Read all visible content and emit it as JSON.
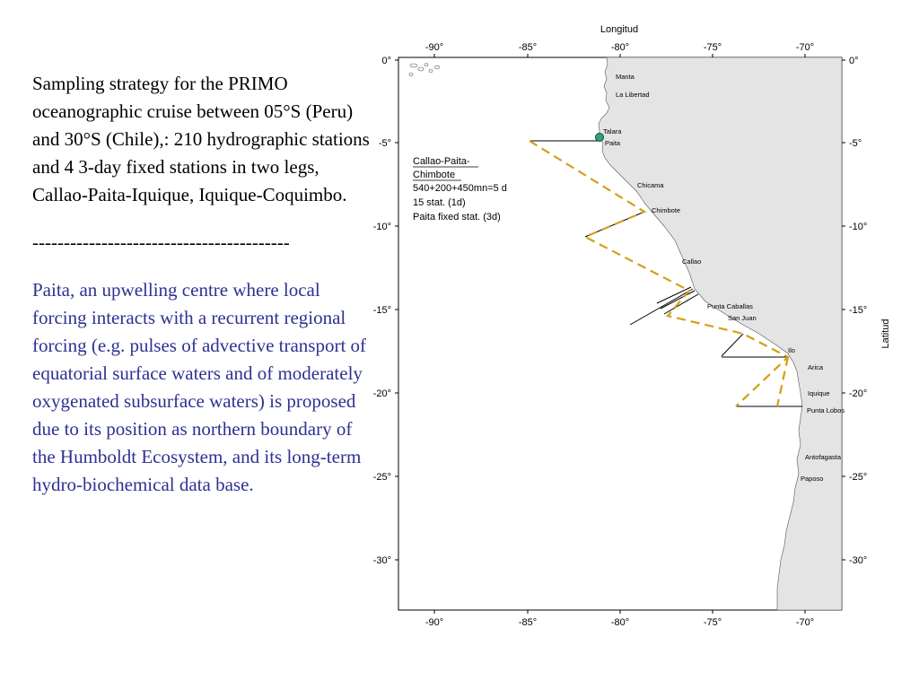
{
  "text": {
    "paragraph1": "Sampling strategy for the PRIMO oceanographic cruise between 05°S (Peru) and 30°S (Chile),: 210 hydrographic stations and 4 3-day fixed stations in two legs, Callao-Paita-Iquique, Iquique-Coquimbo.",
    "separator": "-----------------------------------------",
    "paragraph2": "Paita, an upwelling centre where local forcing interacts with a recurrent regional forcing (e.g. pulses of advective transport of equatorial surface waters and of moderately oxygenated subsurface waters) is proposed due to its position as northern boundary of the Humboldt Ecosystem, and its long-term hydro-biochemical data base."
  },
  "map": {
    "x_axis_title": "Longitud",
    "y_axis_title": "Latitud",
    "lon_ticks": [
      "-90°",
      "-85°",
      "-80°",
      "-75°",
      "-70°"
    ],
    "lat_ticks": [
      "0°",
      "-5°",
      "-10°",
      "-15°",
      "-20°",
      "-25°",
      "-30°"
    ],
    "places": [
      "Manta",
      "La Libertad",
      "Talara",
      "Paita",
      "Chicama",
      "Chimbote",
      "Callao",
      "Punta Caballas",
      "San Juan",
      "Ilo",
      "Arica",
      "Iquique",
      "Punta Lobos",
      "Antofagasta",
      "Paposo"
    ],
    "legend": {
      "title_line1": "Callao-Paita-",
      "title_line2": "Chimbote",
      "line1": "540+200+450mn=5 d",
      "line2": "15 stat. (1d)",
      "line3": "Paita fixed stat. (3d)"
    },
    "colors": {
      "land": "#e4e4e4",
      "track": "#d4a017",
      "station": "#2fa37a",
      "text_blue": "#2e3193"
    }
  }
}
